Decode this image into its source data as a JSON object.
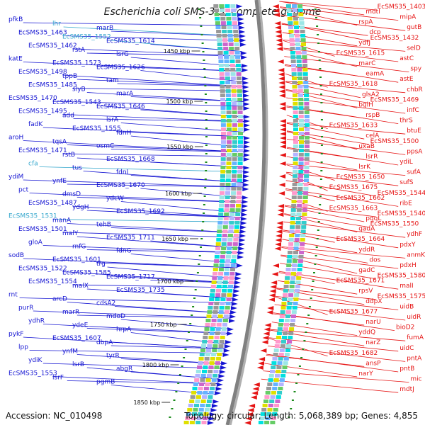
{
  "title": "Escherichia coli SMS-3-5, complete genome",
  "footer": {
    "accession": "Accession: NC_010498",
    "summary": "Topology: circular; Length: 5,068,389 bp; Genes: 4,855"
  },
  "colors": {
    "forward": "#1414d2",
    "reverse": "#e61414",
    "highlight": "#33a6cc",
    "backbone": "#808080",
    "gc_marks": "#1a8a1a"
  },
  "ticks": [
    "1450 kbp",
    "1500 kbp",
    "1550 kbp",
    "1600 kbp",
    "1650 kbp",
    "1700 kbp",
    "1750 kbp",
    "1800 kbp",
    "1850 kbp"
  ],
  "left_labels": [
    "pfkB",
    "EcSMS35_1463",
    "EcSMS35_1462",
    "katE",
    "EcSMS35_1498",
    "EcSMS35_1485",
    "EcSMS35_1470",
    "EcSMS35_1495",
    "fadK",
    "aroH",
    "EcSMS35_1471",
    "cfa",
    "ydiM",
    "pct",
    "EcSMS35_1487",
    "EcSMS35_1531",
    "EcSMS35_1501",
    "gloA",
    "sodB",
    "EcSMS35_1522",
    "EcSMS35_1554",
    "rnt",
    "purR",
    "ydhR",
    "pykF",
    "lpp",
    "ydiK",
    "EcSMS35_1553",
    "lhr",
    "EcSMS35_1552",
    "rstA",
    "EcSMS35_1573",
    "tppB",
    "slyB",
    "EcSMS35_1543",
    "add",
    "EcSMS35_1555",
    "tqsA",
    "rstB",
    "tus",
    "ynfE",
    "dmsD",
    "ydgH",
    "manA",
    "malY",
    "rnfG",
    "EcSMS35_1601",
    "EcSMS35_1585",
    "malX",
    "arcD",
    "marR",
    "ydeE",
    "EcSMS35_1607",
    "ynfM",
    "lsrB",
    "lsrF",
    "marB",
    "EcSMS35_1614",
    "lsrG",
    "EcSMS35_1626",
    "tam",
    "marA",
    "EcSMS35_1646",
    "lsrA",
    "fdnH",
    "osmC",
    "EcSMS35_1668",
    "fdnI",
    "EcSMS35_1670",
    "ydcW",
    "EcSMS35_1692",
    "tehB",
    "EcSMS35_1711",
    "fdnG",
    "trg",
    "EcSMS35_1717",
    "EcSMS35_1735",
    "cdsA2",
    "mdoD",
    "hrpA",
    "dbpA",
    "tyrR",
    "abgR",
    "pgmB"
  ],
  "right_labels": [
    "EcSMS35_1403",
    "mipA",
    "gutB",
    "EcSMS35_1432",
    "selD",
    "astC",
    "spy",
    "astE",
    "chbR",
    "EcSMS35_1469",
    "infC",
    "thrS",
    "btuE",
    "EcSMS35_1500",
    "ppsA",
    "ydiL",
    "sufA",
    "sufS",
    "EcSMS35_1544",
    "ribE",
    "EcSMS35_1540",
    "EcSMS35_1550",
    "ydhF",
    "pdxY",
    "anmK",
    "pdxH",
    "EcSMS35_1580",
    "malI",
    "EcSMS35_1575",
    "uidB",
    "uidR",
    "bioD2",
    "fumA",
    "uidC",
    "pntA",
    "pntB",
    "mic",
    "mdtJ",
    "mdtI",
    "rspA",
    "dcp",
    "ydfJ",
    "EcSMS35_1615",
    "marC",
    "eamA",
    "EcSMS35_1618",
    "glsA2",
    "bglH",
    "rspB",
    "EcSMS35_1633",
    "celA",
    "uxaB",
    "lsrR",
    "lsrK",
    "EcSMS35_1650",
    "EcSMS35_1675",
    "EcSMS35_1662",
    "EcSMS35_1663",
    "pqqL",
    "gadA",
    "EcSMS35_1664",
    "yddR",
    "dos",
    "gadC",
    "EcSMS35_1671",
    "rpsV",
    "ddpX",
    "EcSMS35_1677",
    "narU",
    "yddQ",
    "narZ",
    "EcSMS35_1682",
    "ansP",
    "narY"
  ],
  "highlighted_labels": [
    "cfa",
    "EcSMS35_1531",
    "lhr",
    "EcSMS35_1552"
  ]
}
